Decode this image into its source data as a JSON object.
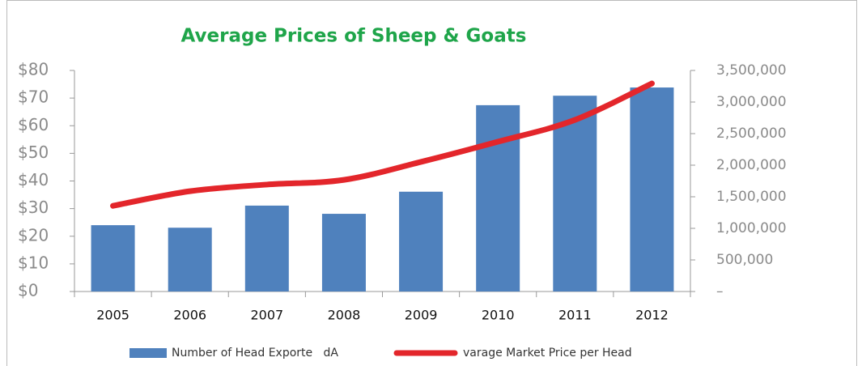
{
  "chart_data": {
    "type": "bar-line",
    "title": "Average Prices of Sheep & Goats",
    "categories": [
      "2005",
      "2006",
      "2007",
      "2008",
      "2009",
      "2010",
      "2011",
      "2012"
    ],
    "series": [
      {
        "name": "Number of Head Exporte   dA",
        "type": "bar",
        "axis": "y2",
        "color": "#4f81bd",
        "values": [
          1050000,
          1010000,
          1360000,
          1230000,
          1580000,
          2950000,
          3100000,
          3230000
        ]
      },
      {
        "name": "varage Market Price per Head",
        "type": "line",
        "axis": "y",
        "color": "#e3262b",
        "values": [
          31,
          36.3,
          38.7,
          40.4,
          46.9,
          54.2,
          62.1,
          75.3
        ]
      }
    ],
    "ylim": [
      0,
      80
    ],
    "yticks": [
      {
        "value": 0,
        "label": "$0"
      },
      {
        "value": 10,
        "label": "$10"
      },
      {
        "value": 20,
        "label": "$20"
      },
      {
        "value": 30,
        "label": "$30"
      },
      {
        "value": 40,
        "label": "$40"
      },
      {
        "value": 50,
        "label": "$50"
      },
      {
        "value": 60,
        "label": "$60"
      },
      {
        "value": 70,
        "label": "$70"
      },
      {
        "value": 80,
        "label": "$80"
      }
    ],
    "y2lim": [
      0,
      3500000
    ],
    "y2ticks": [
      {
        "value": 0,
        "label": "–"
      },
      {
        "value": 500000,
        "label": "500,000"
      },
      {
        "value": 1000000,
        "label": "1,000,000"
      },
      {
        "value": 1500000,
        "label": "1,500,000"
      },
      {
        "value": 2000000,
        "label": "2,000,000"
      },
      {
        "value": 2500000,
        "label": "2,500,000"
      },
      {
        "value": 3000000,
        "label": "3,000,000"
      },
      {
        "value": 3500000,
        "label": "3,500,000"
      }
    ],
    "legend": "bottom"
  }
}
